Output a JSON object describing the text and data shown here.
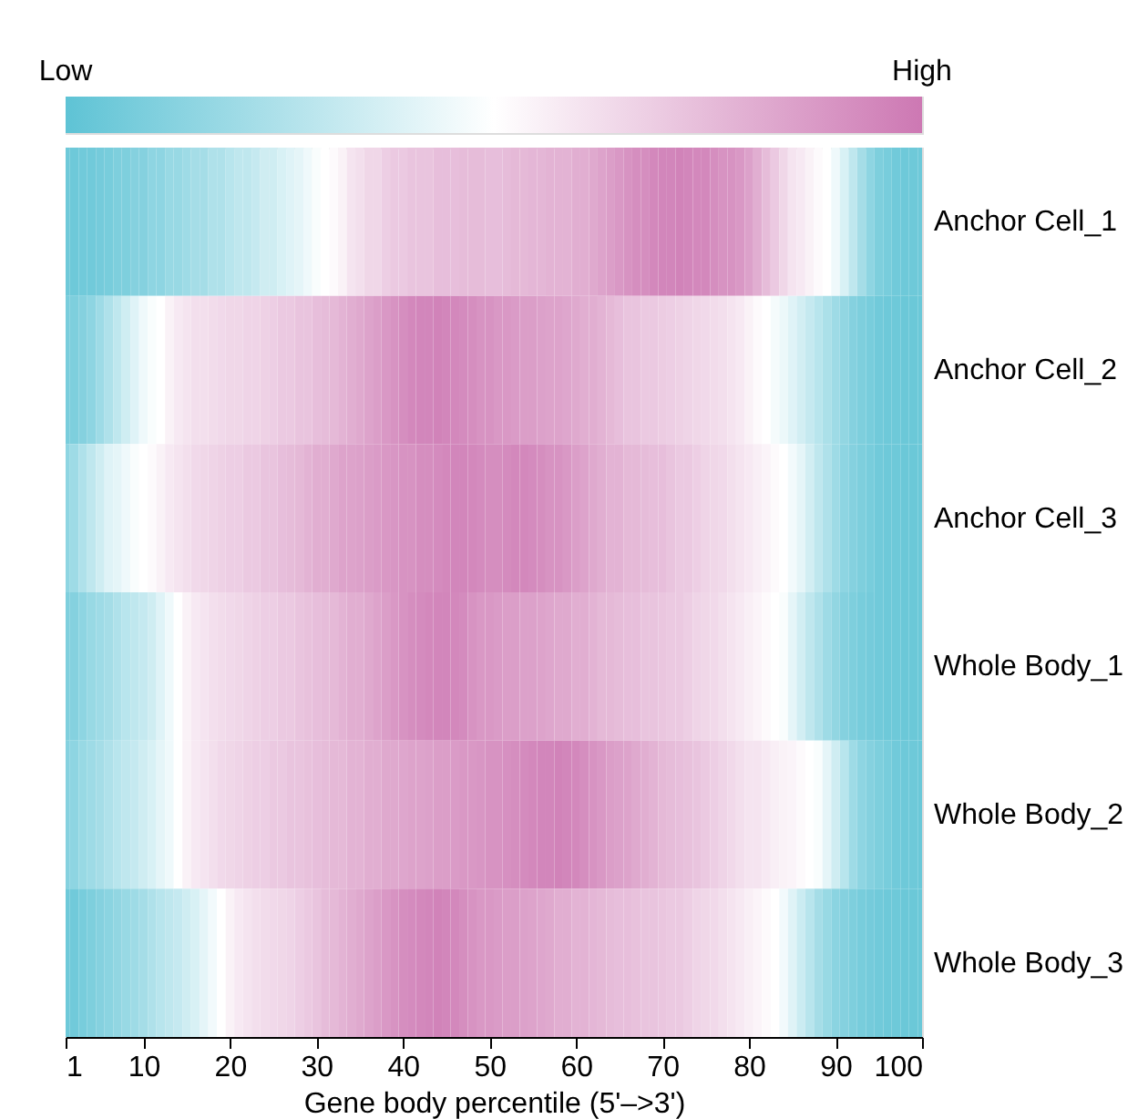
{
  "chart_data": {
    "type": "heatmap",
    "xlabel": "Gene body percentile (5'–>3')",
    "x": [
      1,
      2,
      3,
      4,
      5,
      6,
      7,
      8,
      9,
      10,
      11,
      12,
      13,
      14,
      15,
      16,
      17,
      18,
      19,
      20,
      21,
      22,
      23,
      24,
      25,
      26,
      27,
      28,
      29,
      30,
      31,
      32,
      33,
      34,
      35,
      36,
      37,
      38,
      39,
      40,
      41,
      42,
      43,
      44,
      45,
      46,
      47,
      48,
      49,
      50,
      51,
      52,
      53,
      54,
      55,
      56,
      57,
      58,
      59,
      60,
      61,
      62,
      63,
      64,
      65,
      66,
      67,
      68,
      69,
      70,
      71,
      72,
      73,
      74,
      75,
      76,
      77,
      78,
      79,
      80,
      81,
      82,
      83,
      84,
      85,
      86,
      87,
      88,
      89,
      90,
      91,
      92,
      93,
      94,
      95,
      96,
      97,
      98,
      99,
      100
    ],
    "xlim": [
      1,
      100
    ],
    "xticks": [
      1,
      10,
      20,
      30,
      40,
      50,
      60,
      70,
      80,
      90,
      100
    ],
    "y_categories": [
      "Anchor Cell_1",
      "Anchor Cell_2",
      "Anchor Cell_3",
      "Whole Body_1",
      "Whole Body_2",
      "Whole Body_3"
    ],
    "cells": [
      [
        0.05,
        0.05,
        0.06,
        0.06,
        0.07,
        0.08,
        0.1,
        0.1,
        0.12,
        0.12,
        0.15,
        0.15,
        0.18,
        0.18,
        0.2,
        0.22,
        0.22,
        0.25,
        0.25,
        0.28,
        0.3,
        0.3,
        0.32,
        0.35,
        0.35,
        0.38,
        0.4,
        0.42,
        0.45,
        0.48,
        0.5,
        0.52,
        0.55,
        0.6,
        0.62,
        0.65,
        0.65,
        0.68,
        0.7,
        0.7,
        0.72,
        0.72,
        0.72,
        0.74,
        0.74,
        0.74,
        0.75,
        0.75,
        0.75,
        0.74,
        0.74,
        0.75,
        0.76,
        0.76,
        0.77,
        0.77,
        0.78,
        0.78,
        0.78,
        0.8,
        0.8,
        0.82,
        0.84,
        0.86,
        0.88,
        0.9,
        0.92,
        0.92,
        0.94,
        0.95,
        0.95,
        0.96,
        0.95,
        0.94,
        0.94,
        0.92,
        0.9,
        0.9,
        0.88,
        0.85,
        0.8,
        0.75,
        0.7,
        0.65,
        0.6,
        0.58,
        0.55,
        0.52,
        0.5,
        0.45,
        0.38,
        0.3,
        0.22,
        0.15,
        0.1,
        0.08,
        0.06,
        0.05,
        0.05,
        0.05
      ],
      [
        0.08,
        0.1,
        0.12,
        0.15,
        0.2,
        0.25,
        0.3,
        0.35,
        0.4,
        0.45,
        0.48,
        0.5,
        0.55,
        0.58,
        0.6,
        0.62,
        0.62,
        0.63,
        0.64,
        0.65,
        0.65,
        0.66,
        0.66,
        0.67,
        0.68,
        0.7,
        0.7,
        0.72,
        0.72,
        0.74,
        0.75,
        0.76,
        0.78,
        0.8,
        0.82,
        0.84,
        0.86,
        0.88,
        0.9,
        0.92,
        0.94,
        0.95,
        0.95,
        0.96,
        0.95,
        0.94,
        0.93,
        0.92,
        0.9,
        0.9,
        0.88,
        0.88,
        0.87,
        0.86,
        0.86,
        0.85,
        0.84,
        0.84,
        0.83,
        0.82,
        0.8,
        0.8,
        0.78,
        0.76,
        0.74,
        0.72,
        0.72,
        0.7,
        0.7,
        0.69,
        0.68,
        0.67,
        0.66,
        0.65,
        0.64,
        0.63,
        0.62,
        0.6,
        0.58,
        0.55,
        0.52,
        0.5,
        0.47,
        0.44,
        0.4,
        0.36,
        0.32,
        0.28,
        0.24,
        0.2,
        0.16,
        0.12,
        0.1,
        0.08,
        0.06,
        0.05,
        0.05,
        0.04,
        0.04,
        0.04
      ],
      [
        0.15,
        0.2,
        0.25,
        0.3,
        0.35,
        0.4,
        0.42,
        0.45,
        0.48,
        0.5,
        0.52,
        0.55,
        0.58,
        0.6,
        0.62,
        0.64,
        0.65,
        0.66,
        0.67,
        0.68,
        0.68,
        0.7,
        0.7,
        0.72,
        0.72,
        0.74,
        0.75,
        0.76,
        0.78,
        0.8,
        0.8,
        0.82,
        0.84,
        0.84,
        0.85,
        0.86,
        0.87,
        0.88,
        0.89,
        0.9,
        0.9,
        0.92,
        0.92,
        0.93,
        0.94,
        0.95,
        0.95,
        0.94,
        0.93,
        0.92,
        0.92,
        0.93,
        0.94,
        0.94,
        0.93,
        0.92,
        0.9,
        0.9,
        0.88,
        0.86,
        0.84,
        0.82,
        0.8,
        0.78,
        0.78,
        0.76,
        0.76,
        0.75,
        0.74,
        0.74,
        0.72,
        0.7,
        0.7,
        0.68,
        0.66,
        0.65,
        0.64,
        0.62,
        0.6,
        0.58,
        0.56,
        0.54,
        0.52,
        0.5,
        0.46,
        0.42,
        0.36,
        0.3,
        0.25,
        0.2,
        0.15,
        0.12,
        0.1,
        0.08,
        0.06,
        0.05,
        0.05,
        0.04,
        0.04,
        0.04
      ],
      [
        0.1,
        0.12,
        0.15,
        0.18,
        0.2,
        0.22,
        0.25,
        0.28,
        0.3,
        0.32,
        0.35,
        0.4,
        0.45,
        0.5,
        0.55,
        0.58,
        0.6,
        0.62,
        0.63,
        0.64,
        0.65,
        0.66,
        0.67,
        0.68,
        0.68,
        0.7,
        0.7,
        0.72,
        0.73,
        0.74,
        0.75,
        0.76,
        0.78,
        0.8,
        0.8,
        0.82,
        0.84,
        0.86,
        0.88,
        0.9,
        0.92,
        0.93,
        0.94,
        0.95,
        0.95,
        0.94,
        0.93,
        0.9,
        0.88,
        0.88,
        0.87,
        0.86,
        0.86,
        0.85,
        0.85,
        0.84,
        0.83,
        0.82,
        0.82,
        0.8,
        0.8,
        0.78,
        0.76,
        0.76,
        0.75,
        0.74,
        0.74,
        0.72,
        0.72,
        0.71,
        0.7,
        0.7,
        0.68,
        0.66,
        0.65,
        0.64,
        0.62,
        0.6,
        0.58,
        0.56,
        0.54,
        0.52,
        0.5,
        0.48,
        0.42,
        0.36,
        0.3,
        0.25,
        0.2,
        0.16,
        0.12,
        0.1,
        0.08,
        0.07,
        0.06,
        0.05,
        0.05,
        0.04,
        0.04,
        0.04
      ],
      [
        0.12,
        0.15,
        0.18,
        0.2,
        0.22,
        0.25,
        0.28,
        0.3,
        0.32,
        0.35,
        0.38,
        0.42,
        0.45,
        0.5,
        0.55,
        0.58,
        0.6,
        0.62,
        0.64,
        0.65,
        0.66,
        0.67,
        0.68,
        0.68,
        0.7,
        0.7,
        0.72,
        0.72,
        0.73,
        0.74,
        0.75,
        0.76,
        0.76,
        0.78,
        0.78,
        0.8,
        0.8,
        0.82,
        0.82,
        0.83,
        0.84,
        0.84,
        0.85,
        0.86,
        0.86,
        0.87,
        0.88,
        0.88,
        0.89,
        0.9,
        0.9,
        0.91,
        0.92,
        0.93,
        0.94,
        0.95,
        0.95,
        0.96,
        0.95,
        0.94,
        0.92,
        0.9,
        0.88,
        0.86,
        0.85,
        0.84,
        0.82,
        0.8,
        0.78,
        0.76,
        0.75,
        0.74,
        0.73,
        0.72,
        0.7,
        0.68,
        0.66,
        0.64,
        0.62,
        0.6,
        0.6,
        0.58,
        0.56,
        0.55,
        0.54,
        0.52,
        0.5,
        0.48,
        0.42,
        0.35,
        0.28,
        0.2,
        0.15,
        0.12,
        0.1,
        0.08,
        0.06,
        0.05,
        0.05,
        0.04
      ],
      [
        0.05,
        0.06,
        0.08,
        0.1,
        0.12,
        0.14,
        0.16,
        0.18,
        0.2,
        0.22,
        0.25,
        0.28,
        0.3,
        0.32,
        0.35,
        0.38,
        0.42,
        0.46,
        0.5,
        0.55,
        0.58,
        0.6,
        0.62,
        0.63,
        0.64,
        0.65,
        0.66,
        0.68,
        0.7,
        0.72,
        0.75,
        0.76,
        0.78,
        0.8,
        0.82,
        0.84,
        0.86,
        0.88,
        0.9,
        0.92,
        0.93,
        0.94,
        0.95,
        0.96,
        0.95,
        0.94,
        0.92,
        0.9,
        0.88,
        0.88,
        0.87,
        0.86,
        0.86,
        0.85,
        0.84,
        0.83,
        0.82,
        0.8,
        0.8,
        0.78,
        0.78,
        0.77,
        0.76,
        0.75,
        0.74,
        0.74,
        0.73,
        0.72,
        0.72,
        0.71,
        0.7,
        0.7,
        0.68,
        0.66,
        0.65,
        0.64,
        0.62,
        0.6,
        0.58,
        0.56,
        0.54,
        0.52,
        0.5,
        0.46,
        0.4,
        0.34,
        0.28,
        0.22,
        0.18,
        0.14,
        0.12,
        0.1,
        0.08,
        0.07,
        0.06,
        0.05,
        0.05,
        0.04,
        0.04,
        0.04
      ]
    ],
    "clim": [
      0,
      1
    ],
    "cticks": [
      {
        "value": 0,
        "label": "Low"
      },
      {
        "value": 1,
        "label": "High"
      }
    ]
  }
}
